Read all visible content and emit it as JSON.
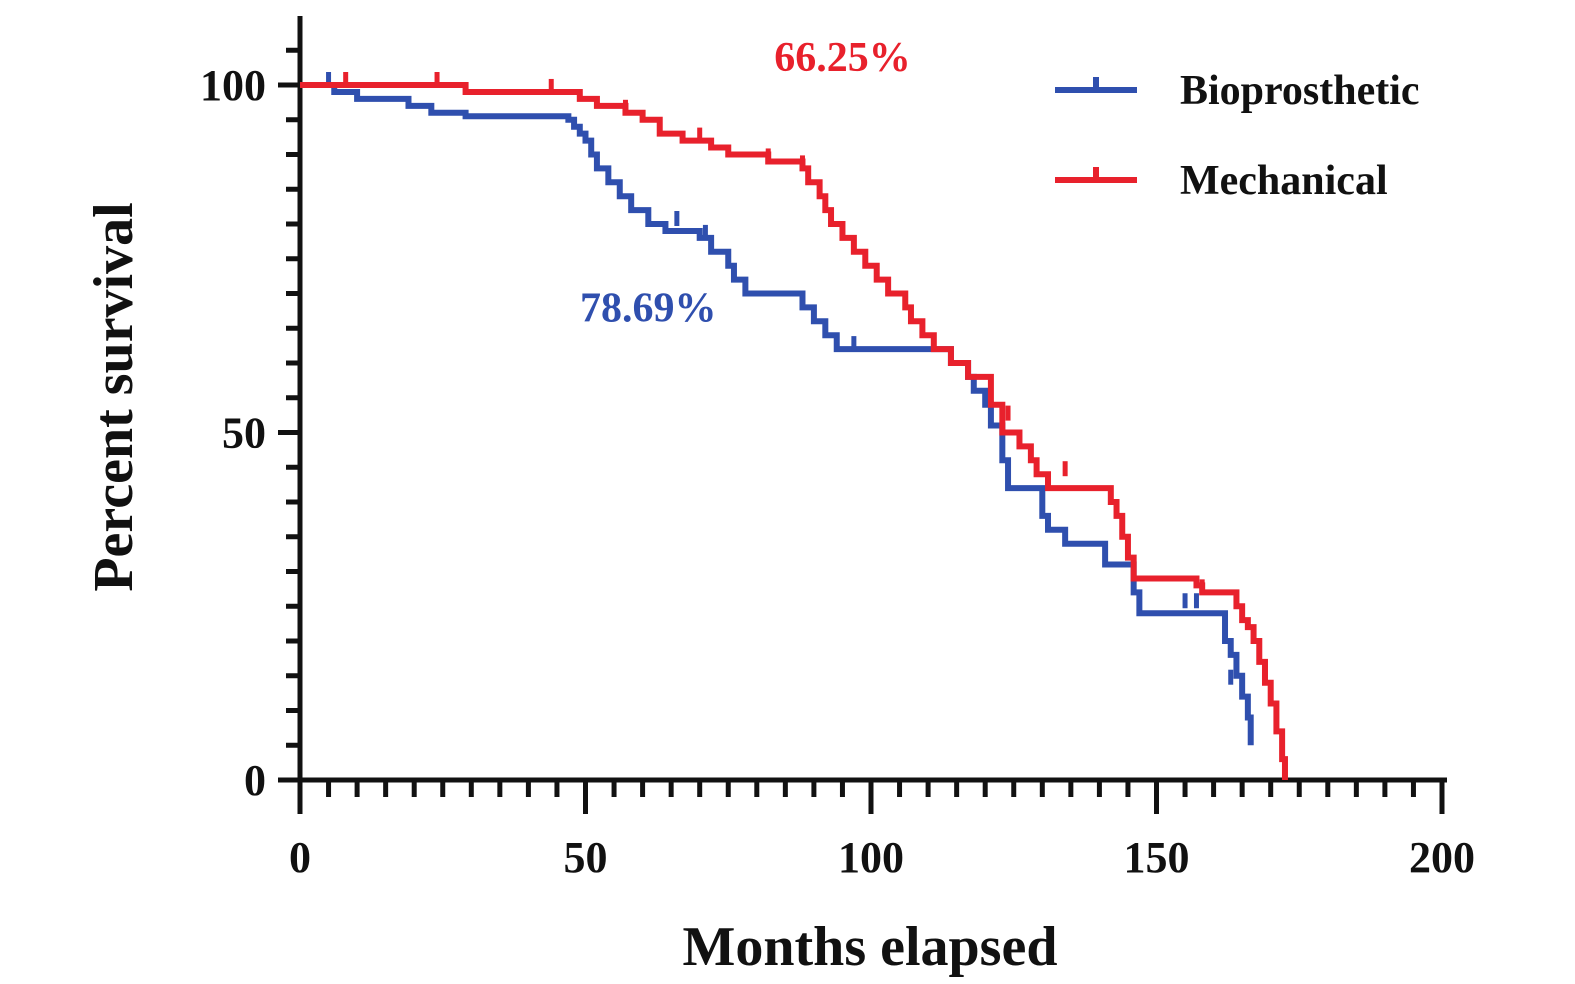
{
  "chart_data": {
    "type": "line",
    "xlabel": "Months elapsed",
    "ylabel": "Percent survival",
    "xlim": [
      0,
      200
    ],
    "ylim": [
      0,
      100
    ],
    "x_ticks": [
      "0",
      "50",
      "100",
      "150",
      "200"
    ],
    "y_ticks": [
      "0",
      "50",
      "100"
    ],
    "x_minor_step": 5,
    "y_minor_step": 5,
    "grid": false,
    "legend_position": "top-right",
    "series": [
      {
        "name": "Bioprosthetic",
        "color": "#2f4fae",
        "points": [
          [
            0,
            100
          ],
          [
            5,
            100
          ],
          [
            6,
            99
          ],
          [
            10,
            98
          ],
          [
            19,
            97
          ],
          [
            23,
            96
          ],
          [
            29,
            95.5
          ],
          [
            47,
            95
          ],
          [
            48,
            94
          ],
          [
            49,
            93
          ],
          [
            50,
            92
          ],
          [
            51,
            90
          ],
          [
            52,
            88
          ],
          [
            54,
            86
          ],
          [
            56,
            84
          ],
          [
            58,
            82
          ],
          [
            61,
            80
          ],
          [
            64,
            79
          ],
          [
            70,
            78
          ],
          [
            72,
            76
          ],
          [
            75,
            74
          ],
          [
            76,
            72
          ],
          [
            78,
            70
          ],
          [
            85,
            70
          ],
          [
            88,
            68
          ],
          [
            90,
            66
          ],
          [
            92,
            64
          ],
          [
            94,
            62
          ],
          [
            113,
            62
          ],
          [
            114,
            60
          ],
          [
            117,
            58
          ],
          [
            118,
            56
          ],
          [
            120,
            54
          ],
          [
            121,
            51
          ],
          [
            123,
            46
          ],
          [
            124,
            42
          ],
          [
            129,
            42
          ],
          [
            130,
            38
          ],
          [
            131,
            36
          ],
          [
            134,
            34
          ],
          [
            141,
            34
          ],
          [
            141,
            31
          ],
          [
            144,
            31
          ],
          [
            146,
            27
          ],
          [
            147,
            24
          ],
          [
            161,
            24
          ],
          [
            162,
            20
          ],
          [
            163,
            18
          ],
          [
            164,
            15
          ],
          [
            165,
            12
          ],
          [
            166,
            9
          ],
          [
            166.5,
            5
          ]
        ],
        "censor_marks": [
          [
            5,
            100
          ],
          [
            66,
            80
          ],
          [
            71,
            78
          ],
          [
            97,
            62
          ],
          [
            155,
            25
          ],
          [
            157,
            25
          ],
          [
            163,
            14
          ]
        ]
      },
      {
        "name": "Mechanical",
        "color": "#e8212c",
        "points": [
          [
            0,
            100
          ],
          [
            5,
            100
          ],
          [
            22,
            100
          ],
          [
            29,
            99
          ],
          [
            49,
            98
          ],
          [
            52,
            97
          ],
          [
            57,
            96
          ],
          [
            60,
            95
          ],
          [
            63,
            93
          ],
          [
            67,
            92
          ],
          [
            72,
            91
          ],
          [
            75,
            90
          ],
          [
            82,
            89
          ],
          [
            88,
            88
          ],
          [
            89,
            86
          ],
          [
            91,
            84
          ],
          [
            92,
            82
          ],
          [
            93,
            80
          ],
          [
            95,
            78
          ],
          [
            97,
            76
          ],
          [
            99,
            74
          ],
          [
            101,
            72
          ],
          [
            103,
            70
          ],
          [
            106,
            68
          ],
          [
            107,
            66
          ],
          [
            109,
            64
          ],
          [
            111,
            62
          ],
          [
            114,
            60
          ],
          [
            117,
            58
          ],
          [
            119,
            58
          ],
          [
            121,
            54
          ],
          [
            123,
            50
          ],
          [
            126,
            48
          ],
          [
            128,
            46
          ],
          [
            129,
            44
          ],
          [
            131,
            42
          ],
          [
            141,
            42
          ],
          [
            142,
            40
          ],
          [
            143,
            38
          ],
          [
            144,
            35
          ],
          [
            145,
            32
          ],
          [
            146,
            29
          ],
          [
            153,
            29
          ],
          [
            157,
            28
          ],
          [
            158,
            27
          ],
          [
            164,
            25
          ],
          [
            165,
            23
          ],
          [
            166,
            22
          ],
          [
            167,
            20
          ],
          [
            168,
            17
          ],
          [
            169,
            14
          ],
          [
            170,
            11
          ],
          [
            171,
            7
          ],
          [
            172,
            3
          ],
          [
            172.5,
            0
          ]
        ],
        "censor_marks": [
          [
            8,
            100
          ],
          [
            24,
            100
          ],
          [
            44,
            99
          ],
          [
            57,
            96
          ],
          [
            70,
            92
          ],
          [
            82,
            89
          ],
          [
            88,
            88
          ],
          [
            124,
            52
          ],
          [
            134,
            44
          ],
          [
            158,
            27
          ]
        ]
      }
    ],
    "annotations": [
      {
        "text": "66.25%",
        "color": "#e8212c",
        "x": 95,
        "y": 102
      },
      {
        "text": "78.69%",
        "color": "#2f4fae",
        "x": 61,
        "y": 66
      }
    ]
  }
}
